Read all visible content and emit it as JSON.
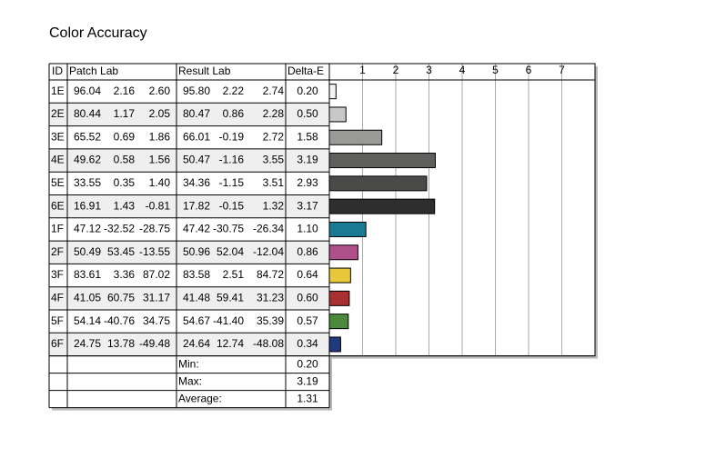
{
  "title": "Color Accuracy",
  "table": {
    "headers": [
      "ID",
      "Patch Lab",
      "Result Lab",
      "Delta-E"
    ],
    "rows": [
      {
        "id": "1E",
        "patch": [
          "96.04",
          "2.16",
          "2.60"
        ],
        "result": [
          "95.80",
          "2.22",
          "2.74"
        ]
      },
      {
        "id": "2E",
        "patch": [
          "80.44",
          "1.17",
          "2.05"
        ],
        "result": [
          "80.47",
          "0.86",
          "2.28"
        ]
      },
      {
        "id": "3E",
        "patch": [
          "65.52",
          "0.69",
          "1.86"
        ],
        "result": [
          "66.01",
          "-0.19",
          "2.72"
        ]
      },
      {
        "id": "4E",
        "patch": [
          "49.62",
          "0.58",
          "1.56"
        ],
        "result": [
          "50.47",
          "-1.16",
          "3.55"
        ]
      },
      {
        "id": "5E",
        "patch": [
          "33.55",
          "0.35",
          "1.40"
        ],
        "result": [
          "34.36",
          "-1.15",
          "3.51"
        ]
      },
      {
        "id": "6E",
        "patch": [
          "16.91",
          "1.43",
          "-0.81"
        ],
        "result": [
          "17.82",
          "-0.15",
          "1.32"
        ]
      },
      {
        "id": "1F",
        "patch": [
          "47.12",
          "-32.52",
          "-28.75"
        ],
        "result": [
          "47.42",
          "-30.75",
          "-26.34"
        ]
      },
      {
        "id": "2F",
        "patch": [
          "50.49",
          "53.45",
          "-13.55"
        ],
        "result": [
          "50.96",
          "52.04",
          "-12.04"
        ]
      },
      {
        "id": "3F",
        "patch": [
          "83.61",
          "3.36",
          "87.02"
        ],
        "result": [
          "83.58",
          "2.51",
          "84.72"
        ]
      },
      {
        "id": "4F",
        "patch": [
          "41.05",
          "60.75",
          "31.17"
        ],
        "result": [
          "41.48",
          "59.41",
          "31.23"
        ]
      },
      {
        "id": "5F",
        "patch": [
          "54.14",
          "-40.76",
          "34.75"
        ],
        "result": [
          "54.67",
          "-41.40",
          "35.39"
        ]
      },
      {
        "id": "6F",
        "patch": [
          "24.75",
          "13.78",
          "-49.48"
        ],
        "result": [
          "24.64",
          "12.74",
          "-48.08"
        ]
      }
    ],
    "summary": [
      {
        "label": "Min:",
        "value": "0.20"
      },
      {
        "label": "Max:",
        "value": "3.19"
      },
      {
        "label": "Average:",
        "value": "1.31"
      }
    ]
  },
  "chart_data": {
    "type": "bar",
    "orientation": "horizontal",
    "values": [
      0.2,
      0.5,
      1.58,
      3.19,
      2.93,
      3.17,
      1.1,
      0.86,
      0.64,
      0.6,
      0.57,
      0.34
    ],
    "value_labels": [
      "0.20",
      "0.50",
      "1.58",
      "3.19",
      "2.93",
      "3.17",
      "1.10",
      "0.86",
      "0.64",
      "0.60",
      "0.57",
      "0.34"
    ],
    "colors": [
      "#f4f4f4",
      "#c8c8c6",
      "#9a9a98",
      "#5f605e",
      "#4a4b48",
      "#2e2e2e",
      "#1a7a96",
      "#b0508a",
      "#e8c838",
      "#a83030",
      "#4a8a3a",
      "#203a80"
    ],
    "xlim": [
      0,
      8
    ],
    "xticks": [
      1,
      2,
      3,
      4,
      5,
      6,
      7
    ],
    "grid": true
  }
}
